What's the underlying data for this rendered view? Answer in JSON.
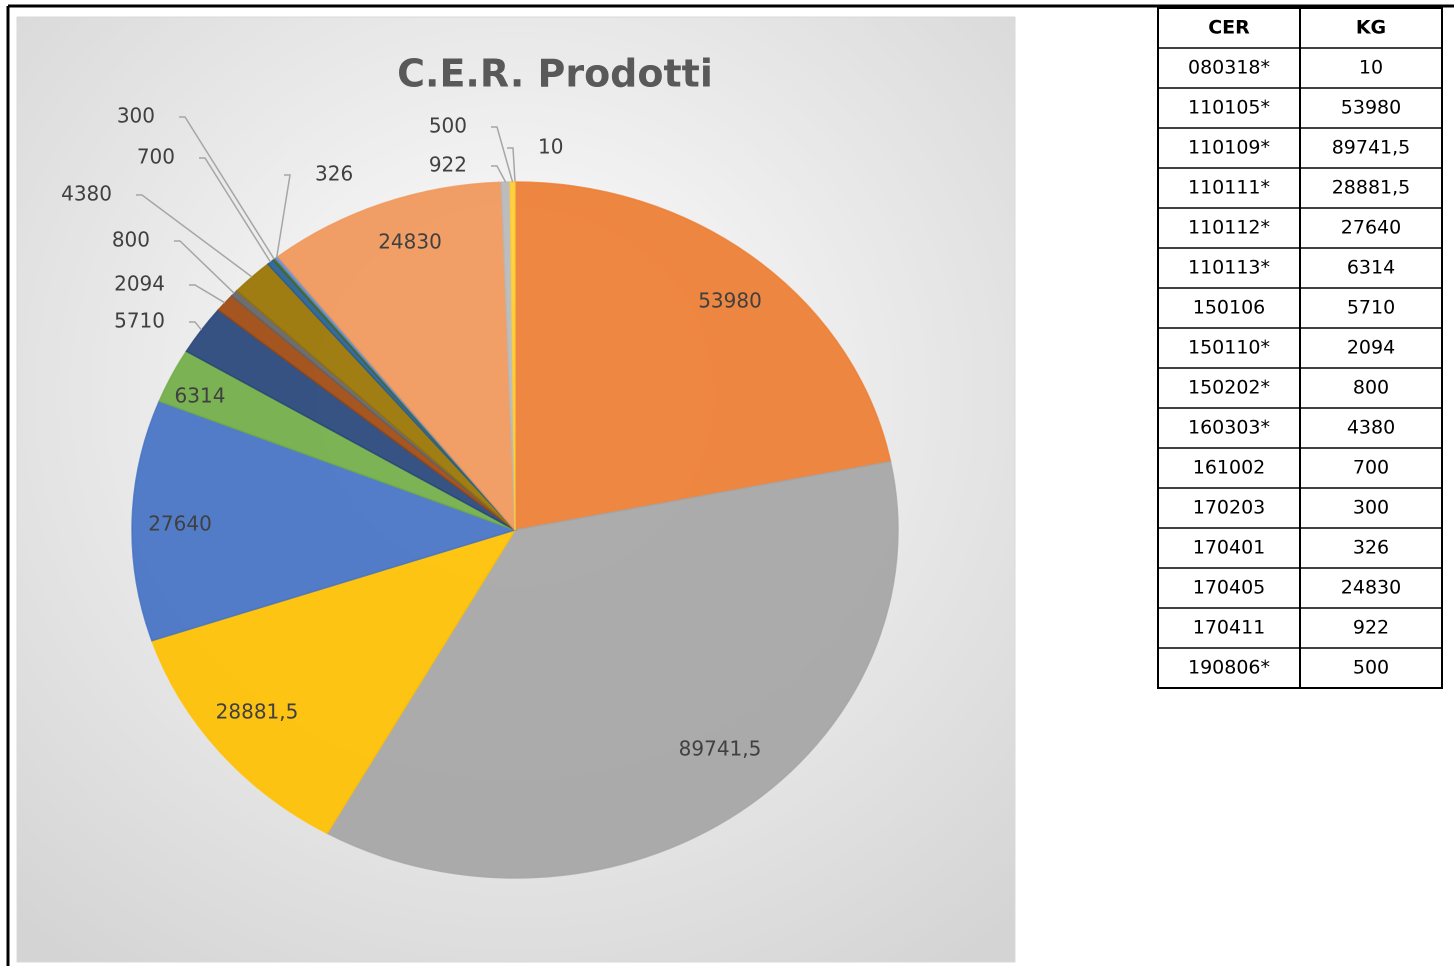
{
  "chart_data": {
    "type": "pie",
    "title": "C.E.R. Prodotti",
    "categories": [
      "080318*",
      "110105*",
      "110109*",
      "110111*",
      "110112*",
      "110113*",
      "150106",
      "150110*",
      "150202*",
      "160303*",
      "161002",
      "170203",
      "170401",
      "170405",
      "170411",
      "190806*"
    ],
    "values": [
      10,
      53980,
      89741.5,
      28881.5,
      27640,
      6314,
      5710,
      2094,
      800,
      4380,
      700,
      300,
      326,
      24830,
      922,
      500
    ],
    "value_labels": [
      "10",
      "53980",
      "89741,5",
      "28881,5",
      "27640",
      "6314",
      "5710",
      "2094",
      "800",
      "4380",
      "700",
      "300",
      "326",
      "24830",
      "922",
      "500"
    ],
    "colors": [
      "#FFC000",
      "#ED7D31",
      "#A5A5A5",
      "#FFC000",
      "#4472C4",
      "#70AD47",
      "#264478",
      "#9E480E",
      "#636363",
      "#997300",
      "#255E91",
      "#43682B",
      "#698ED0",
      "#F1975A",
      "#B7B7B7",
      "#FFCD33"
    ]
  },
  "table": {
    "header": [
      "CER",
      "KG"
    ],
    "rows": [
      [
        "080318*",
        "10"
      ],
      [
        "110105*",
        "53980"
      ],
      [
        "110109*",
        "89741,5"
      ],
      [
        "110111*",
        "28881,5"
      ],
      [
        "110112*",
        "27640"
      ],
      [
        "110113*",
        "6314"
      ],
      [
        "150106",
        "5710"
      ],
      [
        "150110*",
        "2094"
      ],
      [
        "150202*",
        "800"
      ],
      [
        "160303*",
        "4380"
      ],
      [
        "161002",
        "700"
      ],
      [
        "170203",
        "300"
      ],
      [
        "170401",
        "326"
      ],
      [
        "170405",
        "24830"
      ],
      [
        "170411",
        "922"
      ],
      [
        "190806*",
        "500"
      ]
    ]
  }
}
